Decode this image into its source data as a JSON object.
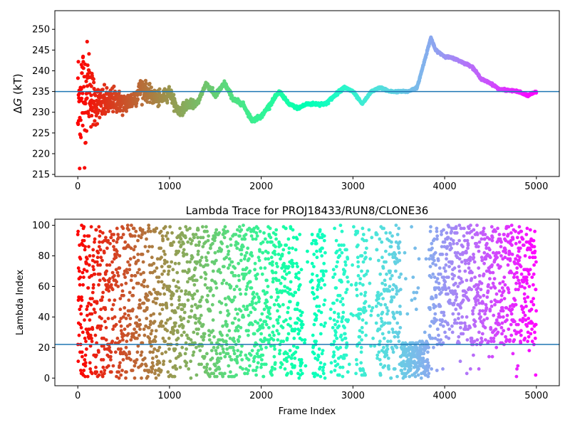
{
  "figure": {
    "colormap": "rainbow",
    "marker_color_order": "frame index increasing: red to violet",
    "hline_color": "#1f77b4"
  },
  "chart_data": [
    {
      "type": "scatter",
      "title": "",
      "xlabel": "",
      "ylabel": "ΔG (kT)",
      "ylabel_prefix": "Δ",
      "ylabel_italic": "G",
      "ylabel_suffix": " (kT)",
      "xlim": [
        -250,
        5250
      ],
      "ylim": [
        214.5,
        254.5
      ],
      "xticks": [
        0,
        1000,
        2000,
        3000,
        4000,
        5000
      ],
      "xtick_labels": [
        "0",
        "1000",
        "2000",
        "3000",
        "4000",
        "5000"
      ],
      "yticks": [
        215,
        220,
        225,
        230,
        235,
        240,
        245,
        250
      ],
      "ytick_labels": [
        "215",
        "220",
        "225",
        "230",
        "235",
        "240",
        "245",
        "250"
      ],
      "hline": 235,
      "grid": false,
      "series_shape": {
        "x": [
          0,
          40,
          80,
          120,
          160,
          200,
          300,
          400,
          500,
          600,
          700,
          800,
          900,
          1000,
          1100,
          1200,
          1300,
          1400,
          1500,
          1600,
          1700,
          1800,
          1900,
          2000,
          2100,
          2200,
          2300,
          2400,
          2500,
          2600,
          2700,
          2800,
          2900,
          3000,
          3100,
          3200,
          3300,
          3400,
          3500,
          3600,
          3700,
          3800,
          3850,
          3900,
          4000,
          4100,
          4200,
          4300,
          4400,
          4500,
          4600,
          4700,
          4800,
          4900,
          5000
        ],
        "y": [
          230,
          235,
          234,
          237,
          233,
          232,
          232,
          233,
          232,
          233,
          236,
          234,
          233,
          235,
          230,
          232,
          232,
          237,
          234,
          237,
          233,
          232,
          228,
          229,
          232,
          235,
          232,
          231,
          232,
          232,
          232,
          234,
          236,
          235,
          232,
          235,
          236,
          235,
          235,
          235,
          236,
          244,
          248,
          245,
          243.5,
          243,
          242,
          241,
          238,
          237,
          235.5,
          235.3,
          235,
          234,
          235
        ],
        "noise": [
          14,
          12,
          11,
          8,
          6,
          4,
          3,
          2.5,
          2,
          2,
          2,
          1.5,
          1.5,
          1.2,
          1,
          1,
          0.5,
          0.5,
          0.5,
          0.5,
          0.5,
          0.4,
          0.4,
          0.4,
          0.4,
          0.3,
          0.3,
          0.3,
          0.3,
          0.3,
          0.3,
          0.3,
          0.3,
          0.3,
          0.2,
          0.2,
          0.2,
          0.2,
          0.2,
          0.2,
          0.2,
          0.2,
          0.2,
          0.2,
          0.2,
          0.2,
          0.2,
          0.2,
          0.2,
          0.2,
          0.2,
          0.2,
          0.2,
          0.2,
          0.2
        ]
      }
    },
    {
      "type": "scatter",
      "title": "Lambda Trace for PROJ18433/RUN8/CLONE36",
      "xlabel": "Frame Index",
      "ylabel": "Lambda Index",
      "xlim": [
        -250,
        5250
      ],
      "ylim": [
        -5,
        104
      ],
      "xticks": [
        0,
        1000,
        2000,
        3000,
        4000,
        5000
      ],
      "xtick_labels": [
        "0",
        "1000",
        "2000",
        "3000",
        "4000",
        "5000"
      ],
      "yticks": [
        0,
        20,
        40,
        60,
        80,
        100
      ],
      "ytick_labels": [
        "0",
        "20",
        "40",
        "60",
        "80",
        "100"
      ],
      "hline": 22,
      "grid": false,
      "density_regions": [
        {
          "x": [
            0,
            3500
          ],
          "y": [
            0,
            100
          ],
          "note": "broad spread"
        },
        {
          "x": [
            3500,
            3850
          ],
          "y": [
            0,
            25
          ],
          "note": "dense low cluster"
        },
        {
          "x": [
            3800,
            5000
          ],
          "y": [
            20,
            100
          ],
          "note": "mostly 25-100"
        }
      ],
      "gap_bands": [
        [
          2450,
          2550
        ],
        [
          2700,
          2780
        ],
        [
          2950,
          3030
        ],
        [
          3150,
          3250
        ]
      ]
    }
  ]
}
